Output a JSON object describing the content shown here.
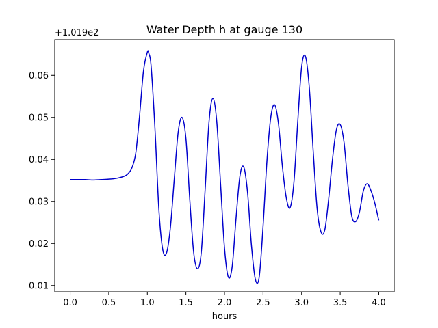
{
  "chart_data": {
    "type": "line",
    "title": "Water Depth h at gauge 130",
    "xlabel": "hours",
    "ylabel": "",
    "y_offset_label": "+1.019e2",
    "xlim": [
      -0.2,
      4.2
    ],
    "ylim": [
      0.0085,
      0.0685
    ],
    "x_ticks": [
      0.0,
      0.5,
      1.0,
      1.5,
      2.0,
      2.5,
      3.0,
      3.5,
      4.0
    ],
    "x_tick_labels": [
      "0.0",
      "0.5",
      "1.0",
      "1.5",
      "2.0",
      "2.5",
      "3.0",
      "3.5",
      "4.0"
    ],
    "y_ticks": [
      0.01,
      0.02,
      0.03,
      0.04,
      0.05,
      0.06
    ],
    "y_tick_labels": [
      "0.01",
      "0.02",
      "0.03",
      "0.04",
      "0.05",
      "0.06"
    ],
    "grid": false,
    "series": [
      {
        "color": "#0000cc",
        "x": [
          0.0,
          0.1,
          0.2,
          0.3,
          0.4,
          0.5,
          0.6,
          0.7,
          0.75,
          0.8,
          0.85,
          0.9,
          0.95,
          1.0,
          1.02,
          1.05,
          1.1,
          1.15,
          1.2,
          1.25,
          1.3,
          1.35,
          1.4,
          1.45,
          1.5,
          1.55,
          1.6,
          1.65,
          1.7,
          1.75,
          1.8,
          1.85,
          1.9,
          1.95,
          2.0,
          2.05,
          2.1,
          2.15,
          2.2,
          2.25,
          2.3,
          2.35,
          2.4,
          2.45,
          2.5,
          2.55,
          2.6,
          2.65,
          2.7,
          2.75,
          2.8,
          2.85,
          2.9,
          2.95,
          3.0,
          3.05,
          3.1,
          3.15,
          3.2,
          3.25,
          3.3,
          3.35,
          3.4,
          3.45,
          3.5,
          3.55,
          3.6,
          3.65,
          3.7,
          3.75,
          3.8,
          3.85,
          3.9,
          3.95,
          4.0
        ],
        "y": [
          0.0352,
          0.0352,
          0.0352,
          0.0351,
          0.0352,
          0.0353,
          0.0355,
          0.036,
          0.0366,
          0.038,
          0.0415,
          0.0505,
          0.061,
          0.0655,
          0.0652,
          0.062,
          0.047,
          0.028,
          0.0185,
          0.0178,
          0.024,
          0.0355,
          0.0465,
          0.05,
          0.045,
          0.0305,
          0.018,
          0.014,
          0.018,
          0.033,
          0.049,
          0.0545,
          0.049,
          0.034,
          0.019,
          0.012,
          0.0145,
          0.026,
          0.036,
          0.0382,
          0.032,
          0.0195,
          0.0115,
          0.012,
          0.024,
          0.0395,
          0.05,
          0.053,
          0.0485,
          0.0385,
          0.031,
          0.0285,
          0.0345,
          0.049,
          0.062,
          0.0645,
          0.057,
          0.042,
          0.0285,
          0.0228,
          0.0232,
          0.0305,
          0.04,
          0.047,
          0.0483,
          0.044,
          0.034,
          0.0265,
          0.0252,
          0.0275,
          0.0325,
          0.0342,
          0.0325,
          0.0295,
          0.0255
        ]
      }
    ]
  }
}
